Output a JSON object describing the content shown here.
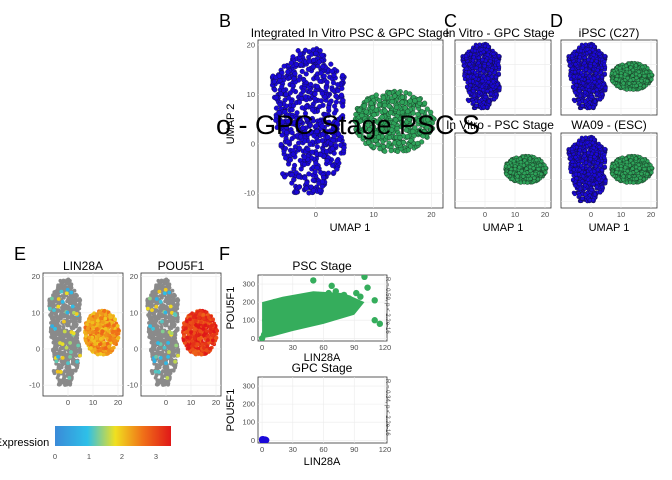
{
  "panel_letters": [
    "B",
    "C",
    "D",
    "E",
    "F"
  ],
  "overlay_text": "o - GPC Stage PSC S",
  "colors": {
    "gpc": "#1a08d8",
    "psc": "#2ea35a",
    "grey": "#8a8a8a",
    "scatter_psc": "#35ad5c",
    "scatter_gpc": "#1a08d8"
  },
  "legend": {
    "title": "Expression",
    "ticks": [
      "0",
      "1",
      "2",
      "3"
    ],
    "stops": [
      "#3a8ad8",
      "#2ec0e8",
      "#f0e020",
      "#f07018",
      "#e01818"
    ]
  },
  "chart_data": [
    {
      "id": "B",
      "type": "scatter",
      "title": "Integrated In Vitro PSC & GPC Stage",
      "xlabel": "UMAP 1",
      "ylabel": "UMAP 2",
      "xticks": [
        "0",
        "10",
        "20"
      ],
      "yticks": [
        "-10",
        "0",
        "10",
        "20"
      ],
      "xlim": [
        -10,
        22
      ],
      "ylim": [
        -13,
        21
      ],
      "series": [
        {
          "name": "GPC Stage",
          "cluster": "gpc"
        },
        {
          "name": "PSC Stage",
          "cluster": "psc"
        }
      ]
    },
    {
      "id": "C_top",
      "type": "scatter",
      "title": "In Vitro - GPC Stage",
      "xticks": [],
      "yticks": [],
      "xlim": [
        -10,
        22
      ],
      "ylim": [
        -13,
        21
      ],
      "series": [
        {
          "cluster": "gpc"
        }
      ]
    },
    {
      "id": "C_bottom",
      "type": "scatter",
      "title": "In Vitro - PSC Stage",
      "xlabel": "UMAP 1",
      "xticks": [
        "0",
        "10",
        "20"
      ],
      "yticks": [],
      "xlim": [
        -10,
        22
      ],
      "ylim": [
        -13,
        21
      ],
      "series": [
        {
          "cluster": "psc"
        }
      ]
    },
    {
      "id": "D_top",
      "type": "scatter",
      "title": "iPSC (C27)",
      "xticks": [],
      "yticks": [],
      "xlim": [
        -10,
        22
      ],
      "ylim": [
        -13,
        21
      ],
      "series": [
        {
          "cluster": "gpc"
        },
        {
          "cluster": "psc"
        }
      ]
    },
    {
      "id": "D_bottom",
      "type": "scatter",
      "title": "WA09 - (ESC)",
      "xlabel": "UMAP 1",
      "xticks": [
        "0",
        "10",
        "20"
      ],
      "yticks": [],
      "xlim": [
        -10,
        22
      ],
      "ylim": [
        -13,
        21
      ],
      "series": [
        {
          "cluster": "gpc"
        },
        {
          "cluster": "psc"
        }
      ]
    },
    {
      "id": "E_left",
      "type": "scatter",
      "title": "LIN28A",
      "xticks": [
        "0",
        "10",
        "20"
      ],
      "yticks": [
        "-10",
        "0",
        "10",
        "20"
      ],
      "xlim": [
        -10,
        22
      ],
      "ylim": [
        -13,
        21
      ],
      "series": [
        {
          "cluster": "grey"
        },
        {
          "cluster": "expr",
          "level": 2.3
        }
      ]
    },
    {
      "id": "E_right",
      "type": "scatter",
      "title": "POU5F1",
      "xticks": [
        "0",
        "10",
        "20"
      ],
      "yticks": [
        "-10",
        "0",
        "10",
        "20"
      ],
      "xlim": [
        -10,
        22
      ],
      "ylim": [
        -13,
        21
      ],
      "series": [
        {
          "cluster": "grey"
        },
        {
          "cluster": "expr",
          "level": 3.1
        }
      ]
    },
    {
      "id": "F_top",
      "type": "scatter",
      "title": "PSC Stage",
      "xlabel": "LIN28A",
      "ylabel": "POU5F1",
      "xticks": [
        "0",
        "30",
        "60",
        "90",
        "120"
      ],
      "yticks": [
        "0",
        "100",
        "200",
        "300"
      ],
      "xlim": [
        -4,
        122
      ],
      "ylim": [
        -15,
        350
      ],
      "side_label": "R = 0.59, p < 2.2e-16",
      "points": [
        [
          0,
          0
        ],
        [
          2,
          20
        ],
        [
          5,
          40
        ],
        [
          8,
          70
        ],
        [
          10,
          60
        ],
        [
          12,
          90
        ],
        [
          15,
          110
        ],
        [
          18,
          80
        ],
        [
          20,
          130
        ],
        [
          22,
          100
        ],
        [
          25,
          150
        ],
        [
          28,
          120
        ],
        [
          30,
          170
        ],
        [
          32,
          140
        ],
        [
          35,
          160
        ],
        [
          38,
          190
        ],
        [
          40,
          130
        ],
        [
          42,
          180
        ],
        [
          45,
          200
        ],
        [
          48,
          150
        ],
        [
          50,
          210
        ],
        [
          52,
          170
        ],
        [
          55,
          240
        ],
        [
          58,
          190
        ],
        [
          60,
          220
        ],
        [
          62,
          160
        ],
        [
          65,
          250
        ],
        [
          68,
          200
        ],
        [
          70,
          230
        ],
        [
          72,
          260
        ],
        [
          75,
          210
        ],
        [
          78,
          190
        ],
        [
          80,
          240
        ],
        [
          85,
          220
        ],
        [
          88,
          180
        ],
        [
          92,
          250
        ],
        [
          96,
          230
        ],
        [
          100,
          340
        ],
        [
          103,
          280
        ],
        [
          110,
          210
        ],
        [
          115,
          80
        ],
        [
          110,
          100
        ],
        [
          5,
          150
        ],
        [
          3,
          100
        ],
        [
          8,
          180
        ],
        [
          12,
          200
        ],
        [
          50,
          320
        ],
        [
          68,
          290
        ]
      ]
    },
    {
      "id": "F_bottom",
      "type": "scatter",
      "title": "GPC Stage",
      "xlabel": "LIN28A",
      "ylabel": "POU5F1",
      "xticks": [
        "0",
        "30",
        "60",
        "90",
        "120"
      ],
      "yticks": [
        "0",
        "100",
        "200",
        "300"
      ],
      "xlim": [
        -4,
        122
      ],
      "ylim": [
        -15,
        350
      ],
      "side_label": "R = 0.34, p < 2.2e-16",
      "points": [
        [
          0,
          0
        ],
        [
          1,
          2
        ],
        [
          2,
          0
        ],
        [
          3,
          4
        ],
        [
          0,
          5
        ],
        [
          1,
          0
        ],
        [
          2,
          3
        ],
        [
          4,
          1
        ],
        [
          3,
          0
        ],
        [
          1,
          6
        ]
      ]
    }
  ]
}
